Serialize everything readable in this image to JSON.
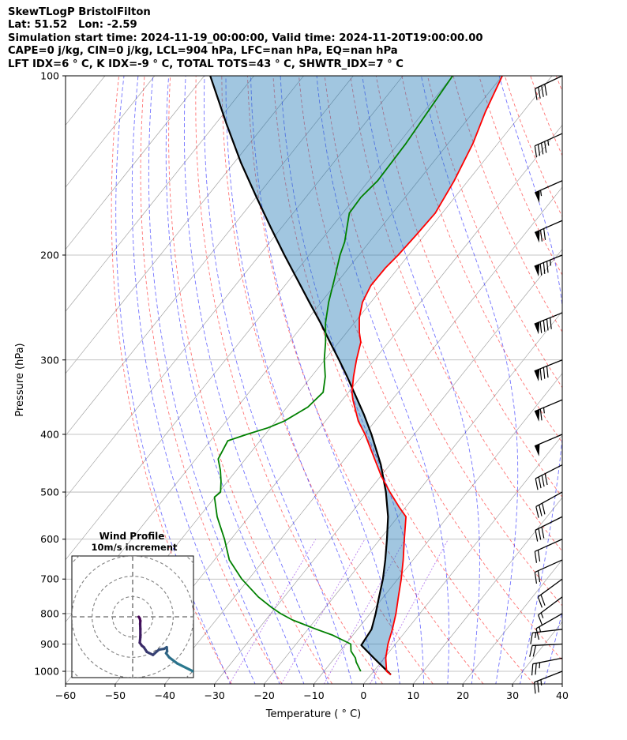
{
  "header": {
    "line1": "SkewTLogP BristolFilton",
    "line2": "Lat: 51.52   Lon: -2.59",
    "line3": "Simulation start time: 2024-11-19_00:00:00, Valid time: 2024-11-20T19:00:00.00",
    "line4": "CAPE=0 j/kg, CIN=0 j/kg, LCL=904 hPa, LFC=nan hPa, EQ=nan hPa",
    "line5": "LFT IDX=6$^\\circ$C, K IDX=-9$^\\circ$C, TOTAL TOTS=43$^\\circ$C, SHWTR_IDX=7$^\\circ$C"
  },
  "header_display": {
    "line5": "LFT IDX=6 ° C, K IDX=-9 ° C, TOTAL TOTS=43 ° C, SHWTR_IDX=7 ° C"
  },
  "chart_data": {
    "type": "skew-t",
    "xlabel": "Temperature ($^\\circ$C)",
    "xlabel_display": "Temperature ( ° C)",
    "ylabel": "Pressure (hPa)",
    "xlim": [
      -60,
      40
    ],
    "ylim": [
      1050,
      100
    ],
    "y_scale": "log",
    "x_ticks": [
      -60,
      -50,
      -40,
      -30,
      -20,
      -10,
      0,
      10,
      20,
      30,
      40
    ],
    "x_tick_labels": [
      "−60",
      "−50",
      "−40",
      "−30",
      "−20",
      "−10",
      "0",
      "10",
      "20",
      "30",
      "40"
    ],
    "y_ticks": [
      1000,
      900,
      800,
      700,
      600,
      500,
      400,
      300,
      200,
      100
    ],
    "y_tick_labels": [
      "1000",
      "900",
      "800",
      "700",
      "600",
      "500",
      "400",
      "300",
      "200",
      "100"
    ],
    "grid": true,
    "colors": {
      "temperature": "#ff0000",
      "dewpoint": "#008000",
      "parcel": "#000000",
      "cape_fill": "#1f77b4",
      "dry_adiabat": "#ff0000",
      "moist_adiabat": "#0000ff",
      "mixing_ratio": "#8a2be2",
      "isotherm": "#808080"
    },
    "series": [
      {
        "key": "temperature",
        "points": [
          [
            1013,
            4.0
          ],
          [
            1000,
            2.6
          ],
          [
            950,
            0.3
          ],
          [
            900,
            -1.5
          ],
          [
            850,
            -3.0
          ],
          [
            800,
            -4.8
          ],
          [
            750,
            -7.0
          ],
          [
            700,
            -9.3
          ],
          [
            650,
            -12.0
          ],
          [
            600,
            -15.1
          ],
          [
            550,
            -18.4
          ],
          [
            530,
            -21.3
          ],
          [
            500,
            -25.6
          ],
          [
            470,
            -29.9
          ],
          [
            440,
            -34.0
          ],
          [
            400,
            -39.9
          ],
          [
            380,
            -43.4
          ],
          [
            350,
            -47.9
          ],
          [
            340,
            -49.3
          ],
          [
            320,
            -51.5
          ],
          [
            300,
            -53.6
          ],
          [
            280,
            -55.6
          ],
          [
            270,
            -57.4
          ],
          [
            255,
            -59.8
          ],
          [
            240,
            -61.7
          ],
          [
            225,
            -62.7
          ],
          [
            210,
            -62.6
          ],
          [
            200,
            -62.1
          ],
          [
            185,
            -61.7
          ],
          [
            170,
            -61.4
          ],
          [
            150,
            -62.8
          ],
          [
            130,
            -65.0
          ],
          [
            115,
            -67.6
          ],
          [
            100,
            -70.0
          ]
        ]
      },
      {
        "key": "dewpoint",
        "points": [
          [
            1000,
            -2.6
          ],
          [
            965,
            -5.0
          ],
          [
            950,
            -5.8
          ],
          [
            925,
            -7.8
          ],
          [
            900,
            -9.0
          ],
          [
            870,
            -14.0
          ],
          [
            850,
            -18.3
          ],
          [
            820,
            -24.6
          ],
          [
            800,
            -28.0
          ],
          [
            780,
            -31.0
          ],
          [
            750,
            -35.2
          ],
          [
            700,
            -41.4
          ],
          [
            650,
            -47.0
          ],
          [
            600,
            -51.3
          ],
          [
            550,
            -56.4
          ],
          [
            510,
            -60.1
          ],
          [
            500,
            -59.7
          ],
          [
            480,
            -61.3
          ],
          [
            460,
            -63.2
          ],
          [
            440,
            -65.5
          ],
          [
            410,
            -66.5
          ],
          [
            400,
            -63.7
          ],
          [
            390,
            -60.5
          ],
          [
            380,
            -58.3
          ],
          [
            360,
            -55.8
          ],
          [
            340,
            -55.1
          ],
          [
            320,
            -57.2
          ],
          [
            300,
            -60.1
          ],
          [
            280,
            -62.7
          ],
          [
            260,
            -65.8
          ],
          [
            240,
            -68.5
          ],
          [
            220,
            -71.0
          ],
          [
            200,
            -73.8
          ],
          [
            190,
            -75.0
          ],
          [
            180,
            -76.8
          ],
          [
            170,
            -78.7
          ],
          [
            160,
            -78.9
          ],
          [
            150,
            -78.2
          ],
          [
            130,
            -78.5
          ],
          [
            115,
            -79.2
          ],
          [
            100,
            -80.0
          ]
        ]
      },
      {
        "key": "parcel",
        "points": [
          [
            1013,
            4.0
          ],
          [
            950,
            -2.1
          ],
          [
            904,
            -6.7
          ],
          [
            850,
            -7.2
          ],
          [
            800,
            -8.9
          ],
          [
            750,
            -10.9
          ],
          [
            700,
            -13.0
          ],
          [
            650,
            -15.6
          ],
          [
            600,
            -18.6
          ],
          [
            550,
            -22.0
          ],
          [
            500,
            -26.4
          ],
          [
            450,
            -31.8
          ],
          [
            400,
            -38.6
          ],
          [
            370,
            -43.4
          ],
          [
            350,
            -47.0
          ],
          [
            320,
            -52.8
          ],
          [
            300,
            -57.1
          ],
          [
            280,
            -61.8
          ],
          [
            260,
            -66.8
          ],
          [
            240,
            -72.4
          ],
          [
            220,
            -78.4
          ],
          [
            200,
            -85.0
          ],
          [
            180,
            -92.1
          ],
          [
            160,
            -99.9
          ],
          [
            140,
            -108.6
          ],
          [
            120,
            -118.0
          ],
          [
            100,
            -128.8
          ]
        ]
      }
    ],
    "wind_barbs": [
      {
        "p": 1000,
        "u": 23,
        "v": 9
      },
      {
        "p": 950,
        "u": 25,
        "v": 5
      },
      {
        "p": 900,
        "u": 20,
        "v": 1
      },
      {
        "p": 850,
        "u": 17,
        "v": 2
      },
      {
        "p": 800,
        "u": 14,
        "v": 8
      },
      {
        "p": 750,
        "u": 12,
        "v": 9
      },
      {
        "p": 700,
        "u": 15,
        "v": 11
      },
      {
        "p": 650,
        "u": 20,
        "v": 9
      },
      {
        "p": 600,
        "u": 20,
        "v": 9
      },
      {
        "p": 550,
        "u": 26,
        "v": 13
      },
      {
        "p": 500,
        "u": 27,
        "v": 15
      },
      {
        "p": 450,
        "u": 35,
        "v": 18
      },
      {
        "p": 400,
        "u": 47,
        "v": 20
      },
      {
        "p": 350,
        "u": 62,
        "v": 26
      },
      {
        "p": 300,
        "u": 75,
        "v": 30
      },
      {
        "p": 250,
        "u": 82,
        "v": 33
      },
      {
        "p": 200,
        "u": 77,
        "v": 31
      },
      {
        "p": 175,
        "u": 62,
        "v": 27
      },
      {
        "p": 150,
        "u": 52,
        "v": 23
      },
      {
        "p": 125,
        "u": 40,
        "v": 18
      },
      {
        "p": 100,
        "u": 38,
        "v": 18
      }
    ],
    "hodograph": {
      "title": "Wind Profile",
      "subtitle": "10m/s increment",
      "ring_spacing": 10,
      "range": 30,
      "path": [
        [
          30,
          -27
        ],
        [
          22,
          -23
        ],
        [
          18,
          -20
        ],
        [
          16.5,
          -18
        ],
        [
          17,
          -17
        ],
        [
          16.8,
          -15
        ],
        [
          15.5,
          -15.8
        ],
        [
          13,
          -16.2
        ],
        [
          12,
          -17
        ],
        [
          10,
          -18.8
        ],
        [
          7,
          -17.3
        ],
        [
          5.5,
          -15
        ],
        [
          4.5,
          -14.2
        ],
        [
          3.5,
          -12.8
        ],
        [
          3.8,
          -10
        ],
        [
          3.8,
          -6
        ],
        [
          3.7,
          -3.5
        ],
        [
          3.8,
          -2
        ],
        [
          3.5,
          -0.8
        ],
        [
          3,
          0
        ]
      ]
    }
  }
}
